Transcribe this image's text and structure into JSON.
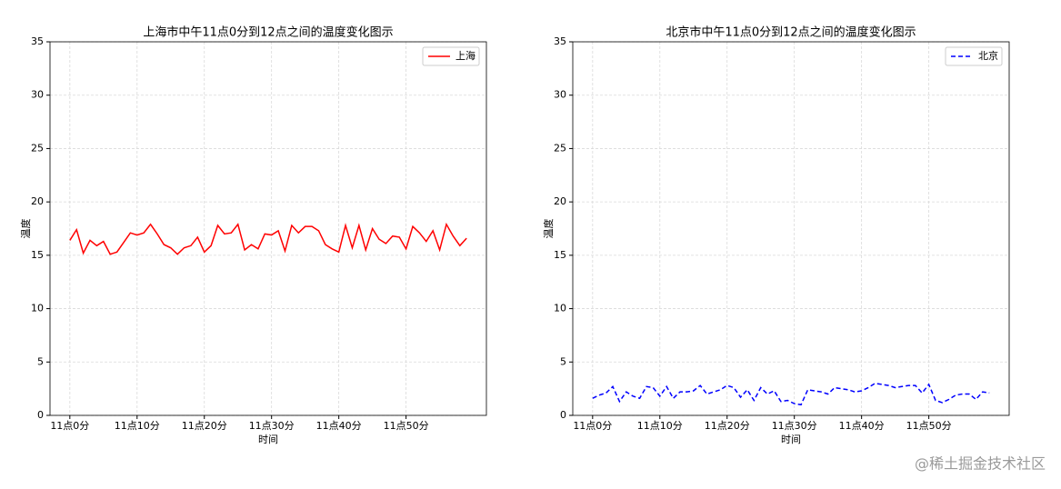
{
  "chart_data": [
    {
      "type": "line",
      "title": "上海市中午11点0分到12点之间的温度变化图示",
      "xlabel": "时间",
      "ylabel": "温度",
      "x": [
        0,
        1,
        2,
        3,
        4,
        5,
        6,
        7,
        8,
        9,
        10,
        11,
        12,
        13,
        14,
        15,
        16,
        17,
        18,
        19,
        20,
        21,
        22,
        23,
        24,
        25,
        26,
        27,
        28,
        29,
        30,
        31,
        32,
        33,
        34,
        35,
        36,
        37,
        38,
        39,
        40,
        41,
        42,
        43,
        44,
        45,
        46,
        47,
        48,
        49,
        50,
        51,
        52,
        53,
        54,
        55,
        56,
        57,
        58,
        59
      ],
      "series": [
        {
          "name": "上海",
          "color": "#ff0000",
          "linestyle": "solid",
          "values": [
            16.4,
            17.4,
            15.2,
            16.4,
            15.9,
            16.3,
            15.1,
            15.3,
            16.2,
            17.1,
            16.9,
            17.1,
            17.9,
            17.0,
            16.0,
            15.7,
            15.1,
            15.7,
            15.9,
            16.7,
            15.3,
            15.9,
            17.8,
            17.0,
            17.1,
            17.9,
            15.5,
            16.0,
            15.6,
            17.0,
            16.9,
            17.3,
            15.4,
            17.8,
            17.1,
            17.7,
            17.7,
            17.3,
            16.0,
            15.6,
            15.3,
            17.8,
            15.7,
            17.8,
            15.5,
            17.5,
            16.5,
            16.1,
            16.8,
            16.7,
            15.6,
            17.7,
            17.1,
            16.3,
            17.3,
            15.5,
            17.9,
            16.8,
            15.9,
            16.6
          ]
        }
      ],
      "xlim": [
        -2.95,
        61.95
      ],
      "xticks": [
        {
          "value": 0,
          "label": "11点0分"
        },
        {
          "value": 10,
          "label": "11点10分"
        },
        {
          "value": 20,
          "label": "11点20分"
        },
        {
          "value": 30,
          "label": "11点30分"
        },
        {
          "value": 40,
          "label": "11点40分"
        },
        {
          "value": 50,
          "label": "11点50分"
        }
      ],
      "ylim": [
        0,
        35
      ],
      "yticks": [
        0,
        5,
        10,
        15,
        20,
        25,
        30,
        35
      ],
      "grid": true,
      "legend": "upper right"
    },
    {
      "type": "line",
      "title": "北京市中午11点0分到12点之间的温度变化图示",
      "xlabel": "时间",
      "ylabel": "温度",
      "x": [
        0,
        1,
        2,
        3,
        4,
        5,
        6,
        7,
        8,
        9,
        10,
        11,
        12,
        13,
        14,
        15,
        16,
        17,
        18,
        19,
        20,
        21,
        22,
        23,
        24,
        25,
        26,
        27,
        28,
        29,
        30,
        31,
        32,
        33,
        34,
        35,
        36,
        37,
        38,
        39,
        40,
        41,
        42,
        43,
        44,
        45,
        46,
        47,
        48,
        49,
        50,
        51,
        52,
        53,
        54,
        55,
        56,
        57,
        58,
        59
      ],
      "series": [
        {
          "name": "北京",
          "color": "#0000ff",
          "linestyle": "dashed",
          "values": [
            1.6,
            1.9,
            2.1,
            2.7,
            1.3,
            2.2,
            1.8,
            1.6,
            2.7,
            2.6,
            1.8,
            2.7,
            1.6,
            2.2,
            2.2,
            2.3,
            2.8,
            2.0,
            2.2,
            2.4,
            2.8,
            2.6,
            1.7,
            2.4,
            1.4,
            2.6,
            2.0,
            2.3,
            1.3,
            1.4,
            1.1,
            1.0,
            2.4,
            2.3,
            2.2,
            2.0,
            2.6,
            2.5,
            2.4,
            2.2,
            2.3,
            2.6,
            3.0,
            2.9,
            2.8,
            2.6,
            2.7,
            2.8,
            2.8,
            2.1,
            2.9,
            1.4,
            1.2,
            1.5,
            1.9,
            2.0,
            2.0,
            1.5,
            2.2,
            2.1
          ]
        }
      ],
      "xlim": [
        -2.95,
        61.95
      ],
      "xticks": [
        {
          "value": 0,
          "label": "11点0分"
        },
        {
          "value": 10,
          "label": "11点10分"
        },
        {
          "value": 20,
          "label": "11点20分"
        },
        {
          "value": 30,
          "label": "11点30分"
        },
        {
          "value": 40,
          "label": "11点40分"
        },
        {
          "value": 50,
          "label": "11点50分"
        }
      ],
      "ylim": [
        0,
        35
      ],
      "yticks": [
        0,
        5,
        10,
        15,
        20,
        25,
        30,
        35
      ],
      "grid": true,
      "legend": "upper right"
    }
  ],
  "watermark": "@稀土掘金技术社区"
}
